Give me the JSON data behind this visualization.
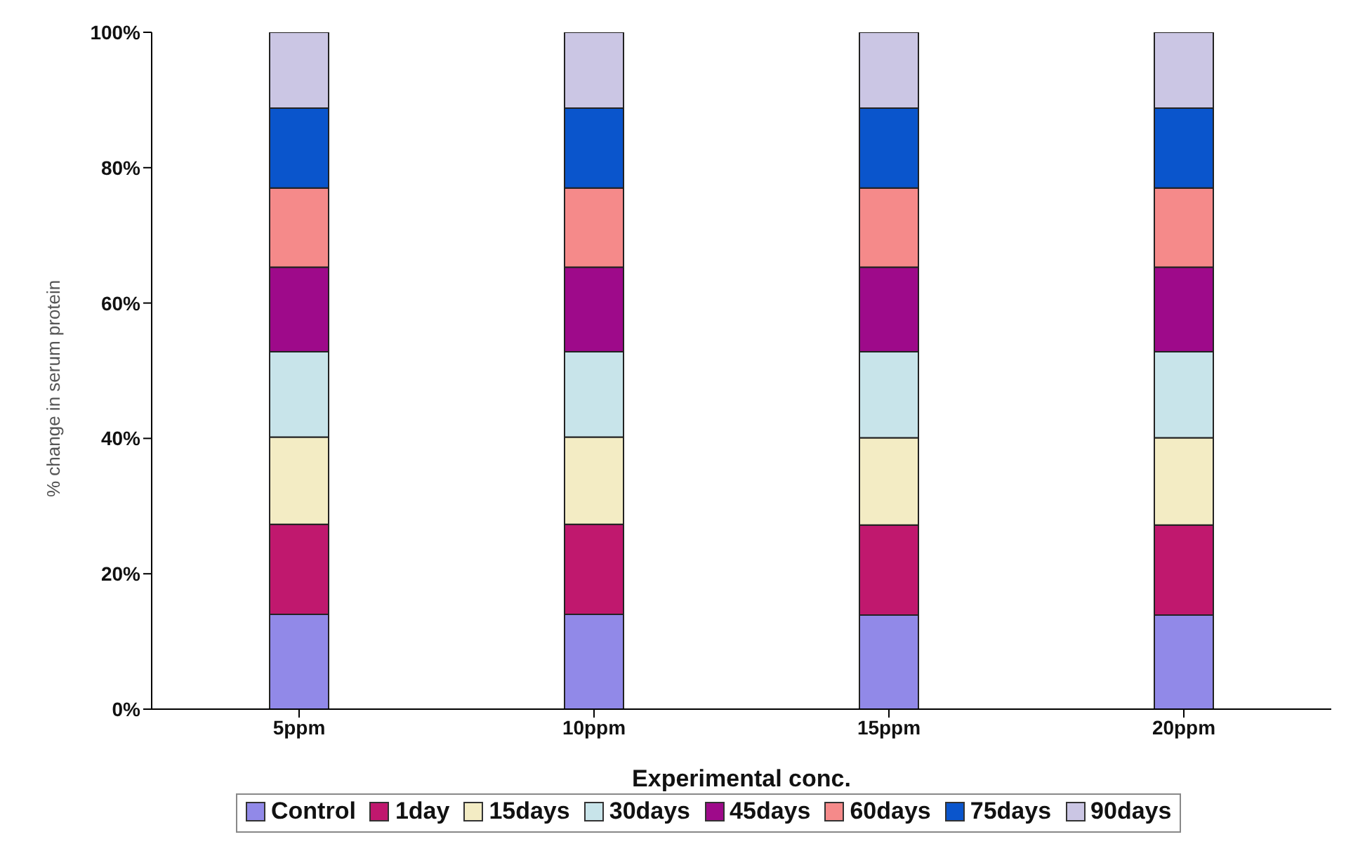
{
  "chart_data": {
    "type": "bar",
    "stacked": true,
    "xlabel": "Experimental conc.",
    "ylabel": "% change in serum protein",
    "categories": [
      "5ppm",
      "10ppm",
      "15ppm",
      "20ppm"
    ],
    "series": [
      {
        "name": "Control",
        "color": "#9189e8",
        "values": [
          14.0,
          14.0,
          13.9,
          13.9
        ]
      },
      {
        "name": "1day",
        "color": "#c0186e",
        "values": [
          13.3,
          13.3,
          13.3,
          13.3
        ]
      },
      {
        "name": "15days",
        "color": "#f3ecc4",
        "values": [
          12.9,
          12.9,
          12.9,
          12.9
        ]
      },
      {
        "name": "30days",
        "color": "#c8e4ea",
        "values": [
          12.6,
          12.6,
          12.7,
          12.7
        ]
      },
      {
        "name": "45days",
        "color": "#9e0a8a",
        "values": [
          12.5,
          12.5,
          12.5,
          12.5
        ]
      },
      {
        "name": "60days",
        "color": "#f58a8a",
        "values": [
          11.7,
          11.7,
          11.7,
          11.7
        ]
      },
      {
        "name": "75days",
        "color": "#0a55cc",
        "values": [
          11.8,
          11.8,
          11.8,
          11.8
        ]
      },
      {
        "name": "90days",
        "color": "#cbc6e4",
        "values": [
          11.2,
          11.2,
          11.2,
          11.2
        ]
      }
    ],
    "ylim": [
      0,
      100
    ],
    "yticks": [
      {
        "value": 0,
        "label": "0%"
      },
      {
        "value": 20,
        "label": "20%"
      },
      {
        "value": 40,
        "label": "40%"
      },
      {
        "value": 60,
        "label": "60%"
      },
      {
        "value": 80,
        "label": "80%"
      },
      {
        "value": 100,
        "label": "100%"
      }
    ],
    "grid": false,
    "legend": "bottom"
  }
}
